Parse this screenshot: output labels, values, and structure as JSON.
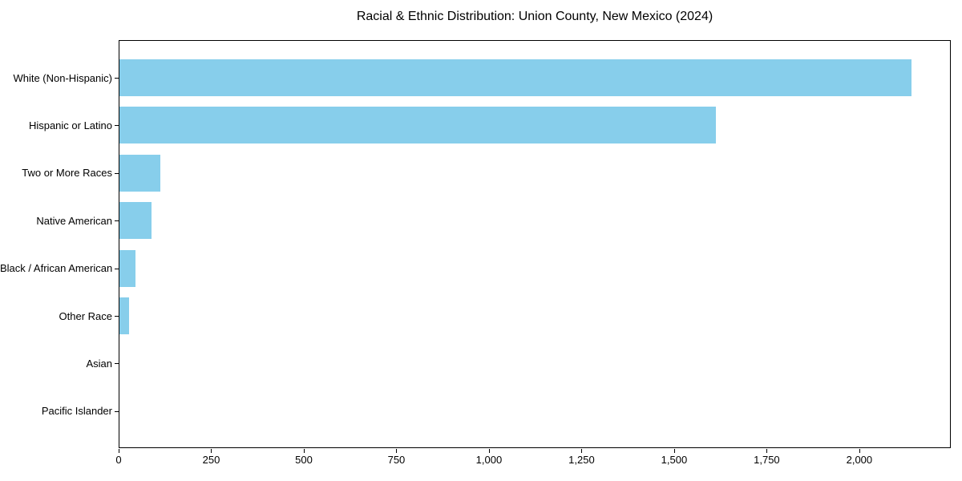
{
  "title": "Racial & Ethnic Distribution: Union County, New Mexico (2024)",
  "chart_data": {
    "type": "bar",
    "orientation": "horizontal",
    "title": "Racial & Ethnic Distribution: Union County, New Mexico (2024)",
    "xlabel": "",
    "ylabel": "",
    "categories": [
      "White (Non-Hispanic)",
      "Hispanic or Latino",
      "Two or More Races",
      "Native American",
      "Black / African American",
      "Other Race",
      "Asian",
      "Pacific Islander"
    ],
    "values": [
      2138,
      1610,
      110,
      87,
      43,
      27,
      0,
      0
    ],
    "xlim": [
      0,
      2247
    ],
    "x_ticks": [
      0,
      250,
      500,
      750,
      1000,
      1250,
      1500,
      1750,
      2000
    ],
    "x_tick_labels": [
      "0",
      "250",
      "500",
      "750",
      "1,000",
      "1,250",
      "1,500",
      "1,750",
      "2,000"
    ],
    "bar_color": "#87CEEB",
    "frame_color": "#000000",
    "background_color": "#ffffff",
    "grid": false,
    "legend": null
  }
}
